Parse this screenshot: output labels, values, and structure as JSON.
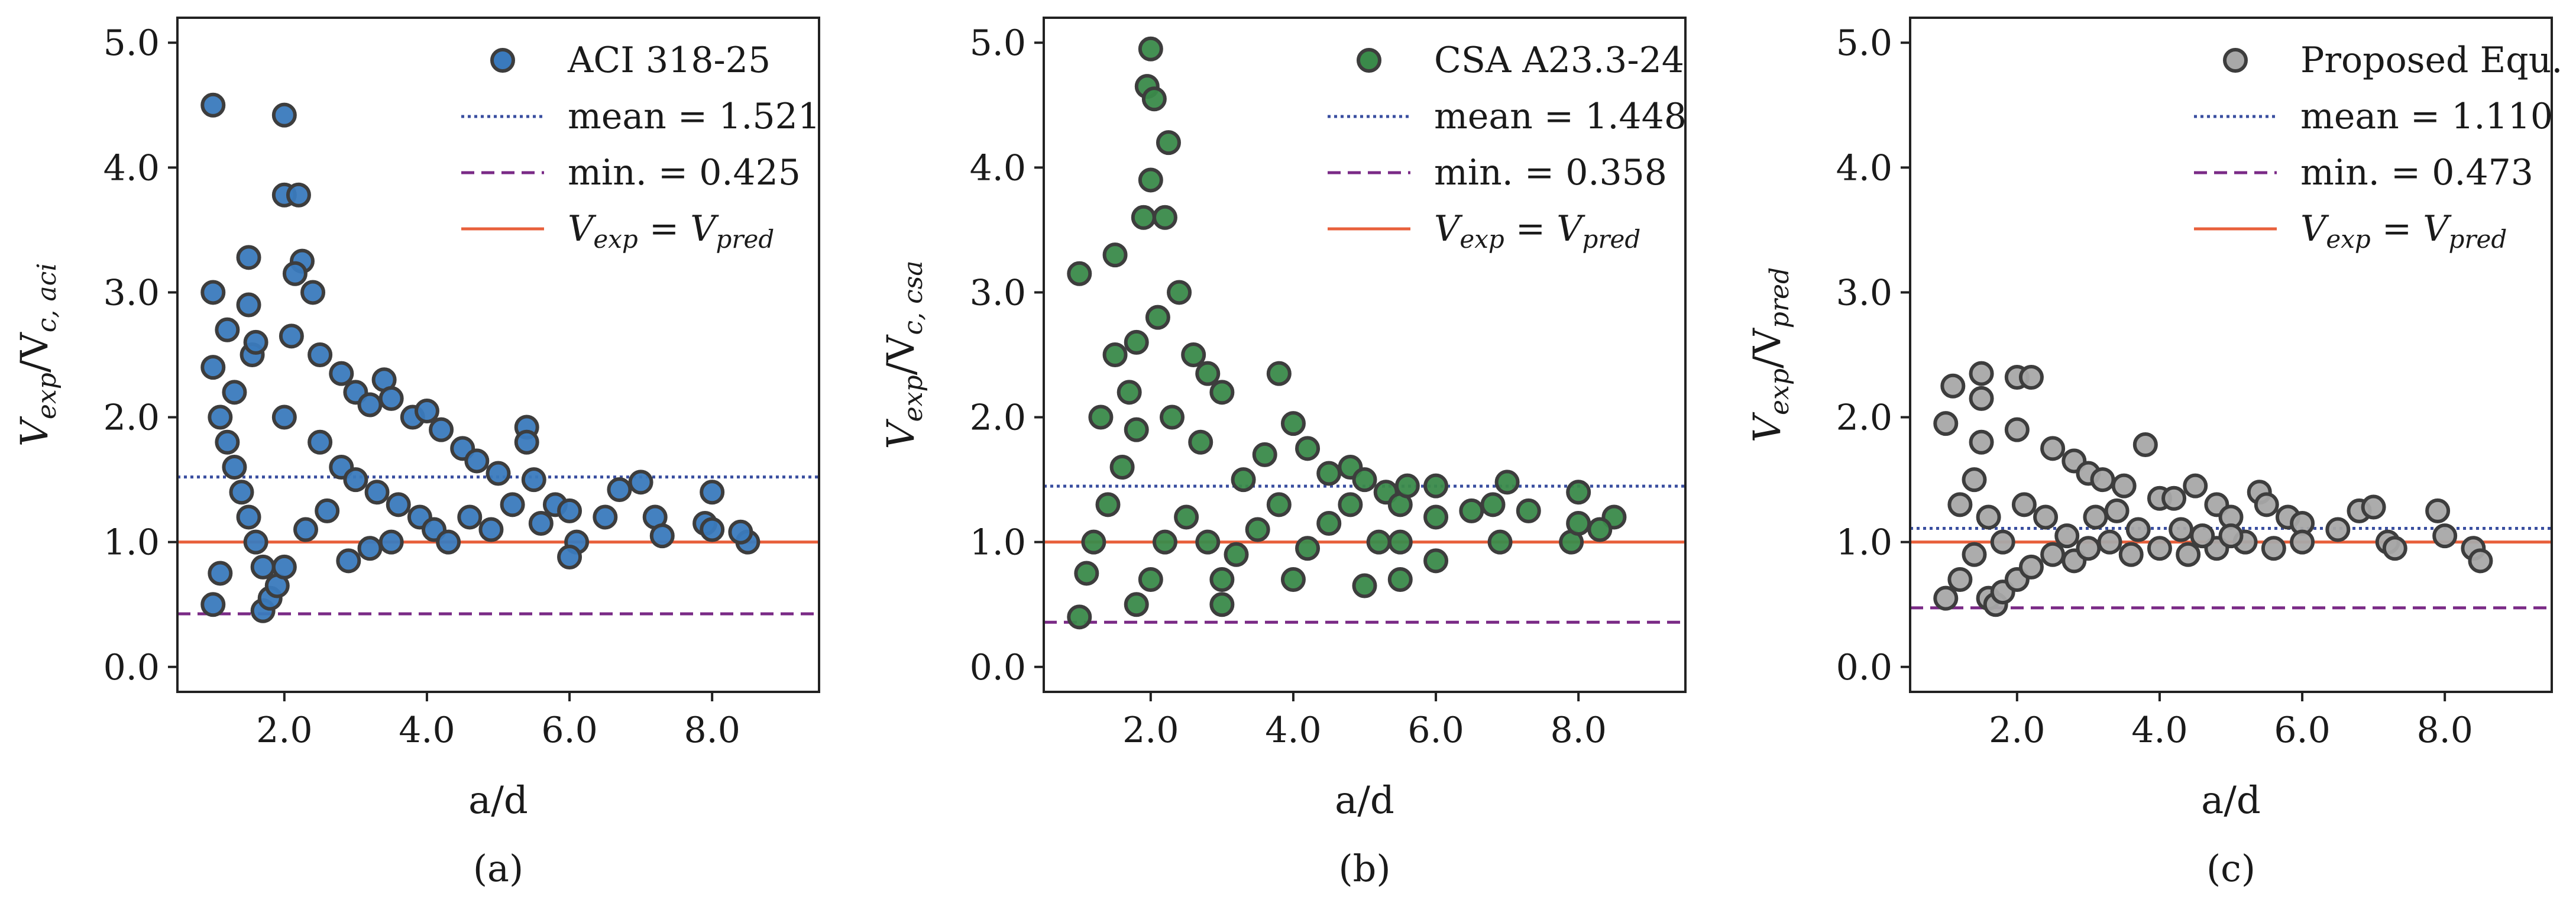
{
  "chart_data": [
    {
      "id": "a",
      "type": "scatter",
      "caption": "(a)",
      "xlabel": "a/d",
      "ylabel": {
        "base": "V",
        "sub1": "exp",
        "sep": "/V",
        "sub2": "c, aci"
      },
      "xlim": [
        0.5,
        9.5
      ],
      "ylim": [
        -0.2,
        5.2
      ],
      "xticks": [
        2.0,
        4.0,
        6.0,
        8.0
      ],
      "xtick_labels": [
        "2.0",
        "4.0",
        "6.0",
        "8.0"
      ],
      "yticks": [
        0.0,
        1.0,
        2.0,
        3.0,
        4.0,
        5.0
      ],
      "ytick_labels": [
        "0.0",
        "1.0",
        "2.0",
        "3.0",
        "4.0",
        "5.0"
      ],
      "marker_color": "#3a7abd",
      "marker_edge": "#3d3d3d",
      "mean": 1.521,
      "min": 0.425,
      "reference_y": 1.0,
      "legend": {
        "series": "ACI 318-25",
        "mean_label": "mean = 1.521",
        "min_label": "min. = 0.425",
        "ref_label": {
          "base": "V",
          "sub1": "exp",
          "mid": " = V",
          "sub2": "pred"
        }
      },
      "points": [
        [
          1.0,
          4.5
        ],
        [
          2.0,
          4.42
        ],
        [
          2.0,
          3.78
        ],
        [
          2.2,
          3.78
        ],
        [
          2.25,
          3.25
        ],
        [
          1.5,
          3.28
        ],
        [
          2.4,
          3.0
        ],
        [
          1.0,
          3.0
        ],
        [
          1.5,
          2.9
        ],
        [
          1.2,
          2.7
        ],
        [
          2.1,
          2.65
        ],
        [
          2.5,
          2.5
        ],
        [
          2.8,
          2.35
        ],
        [
          3.0,
          2.2
        ],
        [
          3.2,
          2.1
        ],
        [
          3.4,
          2.3
        ],
        [
          3.5,
          2.15
        ],
        [
          3.8,
          2.0
        ],
        [
          4.0,
          2.05
        ],
        [
          4.2,
          1.9
        ],
        [
          4.5,
          1.75
        ],
        [
          4.7,
          1.65
        ],
        [
          5.0,
          1.55
        ],
        [
          5.4,
          1.92
        ],
        [
          5.4,
          1.8
        ],
        [
          5.5,
          1.5
        ],
        [
          5.8,
          1.3
        ],
        [
          6.0,
          1.25
        ],
        [
          6.5,
          1.2
        ],
        [
          6.7,
          1.42
        ],
        [
          7.0,
          1.48
        ],
        [
          7.2,
          1.2
        ],
        [
          7.3,
          1.05
        ],
        [
          7.9,
          1.15
        ],
        [
          8.0,
          1.4
        ],
        [
          8.0,
          1.1
        ],
        [
          8.5,
          1.0
        ],
        [
          8.4,
          1.08
        ],
        [
          1.0,
          2.4
        ],
        [
          1.1,
          2.0
        ],
        [
          1.2,
          1.8
        ],
        [
          1.3,
          1.6
        ],
        [
          1.4,
          1.4
        ],
        [
          1.5,
          1.2
        ],
        [
          1.6,
          1.0
        ],
        [
          1.7,
          0.8
        ],
        [
          1.7,
          0.45
        ],
        [
          1.8,
          0.55
        ],
        [
          1.9,
          0.65
        ],
        [
          2.0,
          0.8
        ],
        [
          1.0,
          0.5
        ],
        [
          1.1,
          0.75
        ],
        [
          2.0,
          2.0
        ],
        [
          2.5,
          1.8
        ],
        [
          2.8,
          1.6
        ],
        [
          3.0,
          1.5
        ],
        [
          3.3,
          1.4
        ],
        [
          3.6,
          1.3
        ],
        [
          3.9,
          1.2
        ],
        [
          4.1,
          1.1
        ],
        [
          4.3,
          1.0
        ],
        [
          4.6,
          1.2
        ],
        [
          4.9,
          1.1
        ],
        [
          5.2,
          1.3
        ],
        [
          5.6,
          1.15
        ],
        [
          6.1,
          1.0
        ],
        [
          6.0,
          0.88
        ],
        [
          2.9,
          0.85
        ],
        [
          3.2,
          0.95
        ],
        [
          3.5,
          1.0
        ],
        [
          2.3,
          1.1
        ],
        [
          2.6,
          1.25
        ],
        [
          1.3,
          2.2
        ],
        [
          1.55,
          2.5
        ],
        [
          1.6,
          2.6
        ],
        [
          2.15,
          3.15
        ]
      ]
    },
    {
      "id": "b",
      "type": "scatter",
      "caption": "(b)",
      "xlabel": "a/d",
      "ylabel": {
        "base": "V",
        "sub1": "exp",
        "sep": "/V",
        "sub2": "c, csa"
      },
      "xlim": [
        0.5,
        9.5
      ],
      "ylim": [
        -0.2,
        5.2
      ],
      "xticks": [
        2.0,
        4.0,
        6.0,
        8.0
      ],
      "xtick_labels": [
        "2.0",
        "4.0",
        "6.0",
        "8.0"
      ],
      "yticks": [
        0.0,
        1.0,
        2.0,
        3.0,
        4.0,
        5.0
      ],
      "ytick_labels": [
        "0.0",
        "1.0",
        "2.0",
        "3.0",
        "4.0",
        "5.0"
      ],
      "marker_color": "#3a8a4a",
      "marker_edge": "#3d3d3d",
      "mean": 1.448,
      "min": 0.358,
      "reference_y": 1.0,
      "legend": {
        "series": "CSA A23.3-24",
        "mean_label": "mean = 1.448",
        "min_label": "min. = 0.358",
        "ref_label": {
          "base": "V",
          "sub1": "exp",
          "mid": " = V",
          "sub2": "pred"
        }
      },
      "points": [
        [
          2.0,
          4.95
        ],
        [
          1.95,
          4.65
        ],
        [
          2.05,
          4.55
        ],
        [
          2.25,
          4.2
        ],
        [
          2.0,
          3.9
        ],
        [
          1.9,
          3.6
        ],
        [
          2.2,
          3.6
        ],
        [
          1.0,
          3.15
        ],
        [
          1.5,
          3.3
        ],
        [
          2.4,
          3.0
        ],
        [
          2.1,
          2.8
        ],
        [
          1.8,
          2.6
        ],
        [
          2.6,
          2.5
        ],
        [
          2.8,
          2.35
        ],
        [
          3.0,
          2.2
        ],
        [
          3.8,
          2.35
        ],
        [
          4.0,
          1.95
        ],
        [
          4.2,
          1.75
        ],
        [
          4.5,
          1.55
        ],
        [
          4.8,
          1.6
        ],
        [
          5.0,
          1.5
        ],
        [
          5.3,
          1.4
        ],
        [
          5.5,
          1.3
        ],
        [
          5.6,
          1.45
        ],
        [
          6.0,
          1.45
        ],
        [
          6.0,
          1.2
        ],
        [
          6.5,
          1.25
        ],
        [
          6.8,
          1.3
        ],
        [
          7.0,
          1.48
        ],
        [
          7.3,
          1.25
        ],
        [
          6.9,
          1.0
        ],
        [
          7.9,
          1.0
        ],
        [
          8.0,
          1.4
        ],
        [
          8.0,
          1.15
        ],
        [
          8.5,
          1.2
        ],
        [
          8.3,
          1.1
        ],
        [
          1.0,
          0.4
        ],
        [
          1.1,
          0.75
        ],
        [
          1.2,
          1.0
        ],
        [
          1.4,
          1.3
        ],
        [
          1.6,
          1.6
        ],
        [
          1.8,
          1.9
        ],
        [
          1.8,
          0.5
        ],
        [
          2.0,
          0.7
        ],
        [
          2.2,
          1.0
        ],
        [
          2.5,
          1.2
        ],
        [
          2.8,
          1.0
        ],
        [
          3.0,
          0.5
        ],
        [
          3.0,
          0.7
        ],
        [
          3.2,
          0.9
        ],
        [
          3.5,
          1.1
        ],
        [
          3.8,
          1.3
        ],
        [
          4.0,
          0.7
        ],
        [
          4.2,
          0.95
        ],
        [
          4.5,
          1.15
        ],
        [
          5.0,
          0.65
        ],
        [
          5.2,
          1.0
        ],
        [
          5.5,
          0.7
        ],
        [
          5.5,
          1.0
        ],
        [
          6.0,
          0.85
        ],
        [
          4.8,
          1.3
        ],
        [
          3.3,
          1.5
        ],
        [
          3.6,
          1.7
        ],
        [
          2.3,
          2.0
        ],
        [
          1.3,
          2.0
        ],
        [
          1.5,
          2.5
        ],
        [
          1.7,
          2.2
        ],
        [
          2.7,
          1.8
        ]
      ]
    },
    {
      "id": "c",
      "type": "scatter",
      "caption": "(c)",
      "xlabel": "a/d",
      "ylabel": {
        "base": "V",
        "sub1": "exp",
        "sep": "/V",
        "sub2": "pred"
      },
      "xlim": [
        0.5,
        9.5
      ],
      "ylim": [
        -0.2,
        5.2
      ],
      "xticks": [
        2.0,
        4.0,
        6.0,
        8.0
      ],
      "xtick_labels": [
        "2.0",
        "4.0",
        "6.0",
        "8.0"
      ],
      "yticks": [
        0.0,
        1.0,
        2.0,
        3.0,
        4.0,
        5.0
      ],
      "ytick_labels": [
        "0.0",
        "1.0",
        "2.0",
        "3.0",
        "4.0",
        "5.0"
      ],
      "marker_color": "#a8a8a8",
      "marker_edge": "#3d3d3d",
      "mean": 1.11,
      "min": 0.473,
      "reference_y": 1.0,
      "legend": {
        "series": "Proposed Equ.",
        "mean_label": "mean = 1.110",
        "min_label": "min. = 0.473",
        "ref_label": {
          "base": "V",
          "sub1": "exp",
          "mid": " = V",
          "sub2": "pred"
        }
      },
      "points": [
        [
          1.5,
          2.35
        ],
        [
          2.0,
          2.32
        ],
        [
          2.2,
          2.32
        ],
        [
          1.1,
          2.25
        ],
        [
          1.5,
          2.15
        ],
        [
          1.0,
          1.95
        ],
        [
          1.5,
          1.8
        ],
        [
          2.0,
          1.9
        ],
        [
          2.5,
          1.75
        ],
        [
          2.8,
          1.65
        ],
        [
          3.0,
          1.55
        ],
        [
          3.2,
          1.5
        ],
        [
          3.5,
          1.45
        ],
        [
          3.8,
          1.78
        ],
        [
          4.0,
          1.35
        ],
        [
          4.2,
          1.35
        ],
        [
          4.5,
          1.45
        ],
        [
          4.8,
          1.3
        ],
        [
          5.0,
          1.2
        ],
        [
          5.4,
          1.4
        ],
        [
          5.5,
          1.3
        ],
        [
          5.8,
          1.2
        ],
        [
          6.0,
          1.15
        ],
        [
          6.5,
          1.1
        ],
        [
          6.8,
          1.25
        ],
        [
          7.0,
          1.28
        ],
        [
          7.2,
          1.0
        ],
        [
          7.3,
          0.95
        ],
        [
          7.9,
          1.25
        ],
        [
          8.0,
          1.05
        ],
        [
          8.4,
          0.95
        ],
        [
          8.5,
          0.85
        ],
        [
          1.0,
          0.55
        ],
        [
          1.2,
          0.7
        ],
        [
          1.4,
          0.9
        ],
        [
          1.6,
          0.55
        ],
        [
          1.7,
          0.5
        ],
        [
          1.8,
          0.6
        ],
        [
          2.0,
          0.7
        ],
        [
          2.2,
          0.8
        ],
        [
          2.5,
          0.9
        ],
        [
          2.8,
          0.85
        ],
        [
          3.0,
          0.95
        ],
        [
          3.3,
          1.0
        ],
        [
          3.6,
          0.9
        ],
        [
          4.0,
          0.95
        ],
        [
          4.4,
          0.9
        ],
        [
          4.8,
          0.95
        ],
        [
          5.2,
          1.0
        ],
        [
          5.6,
          0.95
        ],
        [
          6.0,
          1.0
        ],
        [
          1.2,
          1.3
        ],
        [
          1.4,
          1.5
        ],
        [
          1.6,
          1.2
        ],
        [
          1.8,
          1.0
        ],
        [
          2.1,
          1.3
        ],
        [
          2.4,
          1.2
        ],
        [
          2.7,
          1.05
        ],
        [
          3.1,
          1.2
        ],
        [
          3.4,
          1.25
        ],
        [
          3.7,
          1.1
        ],
        [
          4.3,
          1.1
        ],
        [
          4.6,
          1.05
        ],
        [
          5.0,
          1.05
        ]
      ]
    }
  ]
}
